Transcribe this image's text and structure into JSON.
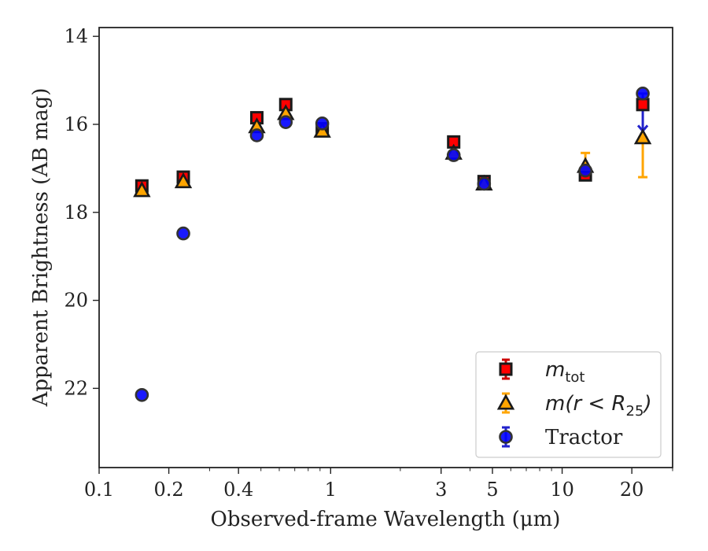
{
  "chart_data": {
    "type": "scatter",
    "title": "",
    "xlabel": "Observed-frame Wavelength (μm)",
    "ylabel": "Apparent Brightness (AB mag)",
    "xscale": "log",
    "xlim": [
      0.1,
      30
    ],
    "ylim": [
      23.8,
      13.8
    ],
    "y_inverted": true,
    "grid": false,
    "legend_position": "lower-right",
    "x_ticks": [
      0.1,
      0.2,
      0.4,
      1,
      3,
      5,
      10,
      20
    ],
    "x_tick_labels": [
      "0.1",
      "0.2",
      "0.4",
      "1",
      "3",
      "5",
      "10",
      "20"
    ],
    "y_ticks": [
      14,
      16,
      18,
      20,
      22
    ],
    "y_tick_labels": [
      "14",
      "16",
      "18",
      "20",
      "22"
    ],
    "series": [
      {
        "name": "m_tot",
        "legend_parts": {
          "main": "m",
          "sub": "tot"
        },
        "marker": "square",
        "color": "#ff0000",
        "edge_color": "#1a1a1a",
        "points": [
          {
            "x": 0.153,
            "y": 17.4
          },
          {
            "x": 0.231,
            "y": 17.2
          },
          {
            "x": 0.48,
            "y": 15.85
          },
          {
            "x": 0.64,
            "y": 15.55
          },
          {
            "x": 0.92,
            "y": 16.1
          },
          {
            "x": 3.4,
            "y": 16.4
          },
          {
            "x": 4.6,
            "y": 17.3
          },
          {
            "x": 12.6,
            "y": 17.15
          },
          {
            "x": 22.3,
            "y": 15.55
          }
        ]
      },
      {
        "name": "m(r < R_25)",
        "legend_parts": {
          "main": "m(r < R",
          "sub": "25",
          "after": ")"
        },
        "marker": "triangle",
        "color": "#ffa500",
        "edge_color": "#1a1a1a",
        "points": [
          {
            "x": 0.153,
            "y": 17.5
          },
          {
            "x": 0.231,
            "y": 17.3
          },
          {
            "x": 0.48,
            "y": 16.05
          },
          {
            "x": 0.64,
            "y": 15.75
          },
          {
            "x": 0.92,
            "y": 16.15
          },
          {
            "x": 3.4,
            "y": 16.65
          },
          {
            "x": 4.6,
            "y": 17.35
          },
          {
            "x": 12.6,
            "y": 16.95,
            "err": 0.3
          },
          {
            "x": 22.3,
            "y": 16.3,
            "err_lower": 0.9,
            "err_upper": 0.0
          }
        ]
      },
      {
        "name": "Tractor",
        "marker": "circle",
        "color": "#0000ff",
        "edge_color": "#333333",
        "points": [
          {
            "x": 0.153,
            "y": 22.15
          },
          {
            "x": 0.231,
            "y": 18.48
          },
          {
            "x": 0.48,
            "y": 16.25
          },
          {
            "x": 0.64,
            "y": 15.95
          },
          {
            "x": 0.92,
            "y": 15.98
          },
          {
            "x": 3.4,
            "y": 16.7
          },
          {
            "x": 4.6,
            "y": 17.35
          },
          {
            "x": 12.6,
            "y": 17.05
          },
          {
            "x": 22.3,
            "y": 15.3,
            "err_lower": 0.85,
            "err_upper": 0.0
          }
        ]
      }
    ]
  }
}
